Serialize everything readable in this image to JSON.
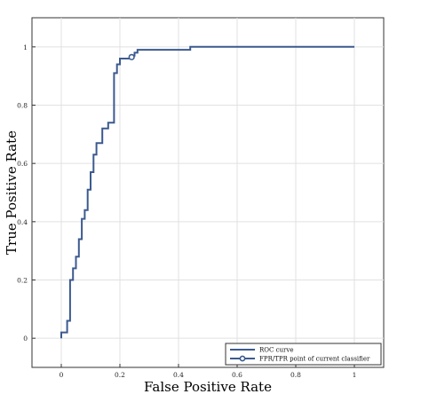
{
  "chart_data": {
    "type": "line",
    "title": "",
    "xlabel": "False Positive Rate",
    "ylabel": "True Positive Rate",
    "xlim": [
      -0.1,
      1.1
    ],
    "ylim": [
      -0.1,
      1.1
    ],
    "xticks": [
      0,
      0.2,
      0.4,
      0.6,
      0.8,
      1
    ],
    "yticks": [
      0,
      0.2,
      0.4,
      0.6,
      0.8,
      1
    ],
    "grid": true,
    "legend_position": "bottom-right",
    "line_color": "#3c5a8f",
    "series": [
      {
        "name": "ROC curve",
        "x": [
          0,
          0,
          0.02,
          0.02,
          0.03,
          0.03,
          0.04,
          0.04,
          0.05,
          0.05,
          0.06,
          0.06,
          0.07,
          0.07,
          0.08,
          0.08,
          0.09,
          0.09,
          0.1,
          0.1,
          0.11,
          0.11,
          0.12,
          0.12,
          0.14,
          0.14,
          0.16,
          0.16,
          0.18,
          0.18,
          0.19,
          0.19,
          0.2,
          0.2,
          0.24,
          0.24,
          0.25,
          0.25,
          0.26,
          0.26,
          0.44,
          0.44,
          1
        ],
        "y": [
          0,
          0.02,
          0.02,
          0.06,
          0.06,
          0.2,
          0.2,
          0.24,
          0.24,
          0.28,
          0.28,
          0.34,
          0.34,
          0.41,
          0.41,
          0.44,
          0.44,
          0.51,
          0.51,
          0.57,
          0.57,
          0.63,
          0.63,
          0.67,
          0.67,
          0.72,
          0.72,
          0.74,
          0.74,
          0.91,
          0.91,
          0.94,
          0.94,
          0.96,
          0.96,
          0.97,
          0.97,
          0.98,
          0.98,
          0.99,
          0.99,
          1,
          1
        ]
      },
      {
        "name": "FPR/TPR point of current classifier",
        "x": [
          0.24
        ],
        "y": [
          0.965
        ],
        "marker": "circle"
      }
    ],
    "tick_labels": {
      "x": [
        "0",
        "0.2",
        "0.4",
        "0.6",
        "0.8",
        "1"
      ],
      "y": [
        "0",
        "0.2",
        "0.4",
        "0.6",
        "0.8",
        "1"
      ]
    }
  }
}
